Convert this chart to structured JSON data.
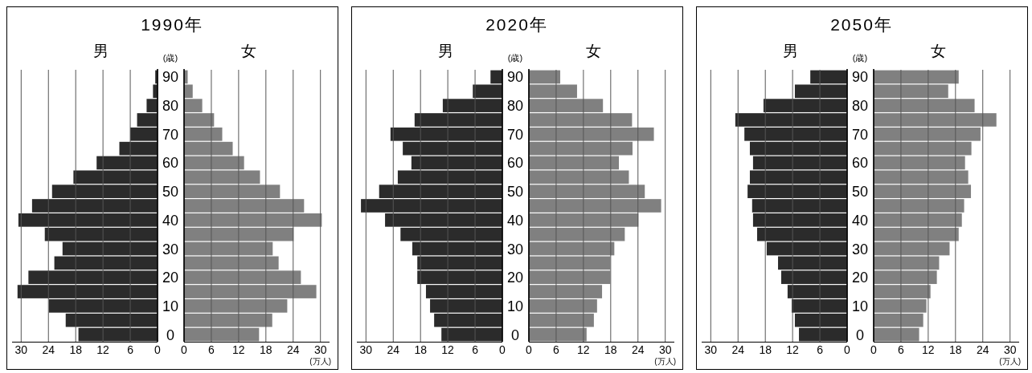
{
  "chart_data": [
    {
      "type": "bar",
      "orientation": "horizontal",
      "title": "1990年",
      "subtitle": "男",
      "ylabel": "(歳)",
      "categories": [
        "90",
        null,
        "80",
        null,
        "70",
        null,
        "60",
        null,
        "50",
        null,
        "40",
        null,
        "30",
        null,
        "20",
        null,
        "10",
        null,
        "0"
      ],
      "xlim": [
        32,
        0
      ],
      "xticks": [
        30,
        24,
        18,
        12,
        6,
        0
      ],
      "grid": "x",
      "series": [
        {
          "color": "#2b2b2b",
          "values": [
            0.5,
            1.0,
            2.4,
            4.5,
            6.0,
            8.4,
            13.4,
            18.5,
            23.2,
            27.6,
            30.6,
            24.8,
            20.9,
            22.7,
            28.4,
            30.8,
            23.9,
            20.2,
            17.4
          ]
        }
      ]
    },
    {
      "type": "bar",
      "orientation": "horizontal",
      "subtitle": "女",
      "xlabel": "(万人)",
      "tick_labels": "x",
      "categories": [
        "90",
        null,
        "80",
        null,
        "70",
        null,
        "60",
        null,
        "50",
        null,
        "40",
        null,
        "30",
        null,
        "20",
        null,
        "10",
        null,
        "0"
      ],
      "xlim": [
        0,
        32
      ],
      "xticks": [
        0,
        6,
        12,
        18,
        24,
        30
      ],
      "grid": "x",
      "series": [
        {
          "color": "#808080",
          "values": [
            0.8,
            1.9,
            4.0,
            6.6,
            8.4,
            10.7,
            13.2,
            16.7,
            21.1,
            26.4,
            30.3,
            24.1,
            19.5,
            20.8,
            25.7,
            29.1,
            22.7,
            19.4,
            16.5
          ]
        }
      ]
    },
    {
      "type": "bar",
      "orientation": "horizontal",
      "title": "2020年",
      "subtitle": "男",
      "ylabel": "(歳)",
      "categories": [
        "90",
        null,
        "80",
        null,
        "70",
        null,
        "60",
        null,
        "50",
        null,
        "40",
        null,
        "30",
        null,
        "20",
        null,
        "10",
        null,
        "0"
      ],
      "xlim": [
        32,
        0
      ],
      "xticks": [
        30,
        24,
        18,
        12,
        6,
        0
      ],
      "grid": "x",
      "series": [
        {
          "color": "#2b2b2b",
          "values": [
            2.6,
            6.5,
            13.1,
            19.3,
            24.6,
            21.9,
            20.0,
            23.0,
            27.1,
            31.1,
            25.8,
            22.4,
            19.8,
            18.7,
            18.7,
            16.8,
            15.9,
            15.0,
            13.4
          ]
        }
      ]
    },
    {
      "type": "bar",
      "orientation": "horizontal",
      "subtitle": "女",
      "xlabel": "(万人)",
      "tick_labels": "x",
      "categories": [
        "90",
        null,
        "80",
        null,
        "70",
        null,
        "60",
        null,
        "50",
        null,
        "40",
        null,
        "30",
        null,
        "20",
        null,
        "10",
        null,
        "0"
      ],
      "xlim": [
        0,
        32
      ],
      "xticks": [
        0,
        6,
        12,
        18,
        24,
        30
      ],
      "grid": "x",
      "series": [
        {
          "color": "#808080",
          "values": [
            6.9,
            10.6,
            16.3,
            22.7,
            27.5,
            22.8,
            19.8,
            22.0,
            25.5,
            29.1,
            24.1,
            21.1,
            18.8,
            17.9,
            17.9,
            16.1,
            15.0,
            14.3,
            12.7
          ]
        }
      ]
    },
    {
      "type": "bar",
      "orientation": "horizontal",
      "title": "2050年",
      "subtitle": "男",
      "ylabel": "(歳)",
      "categories": [
        "90",
        null,
        "80",
        null,
        "70",
        null,
        "60",
        null,
        "50",
        null,
        "40",
        null,
        "30",
        null,
        "20",
        null,
        "10",
        null,
        "0"
      ],
      "xlim": [
        32,
        0
      ],
      "xticks": [
        30,
        24,
        18,
        12,
        6,
        0
      ],
      "grid": "x",
      "series": [
        {
          "color": "#2b2b2b",
          "values": [
            8.1,
            11.5,
            18.4,
            24.6,
            22.6,
            21.4,
            20.7,
            21.4,
            21.9,
            20.9,
            20.7,
            19.8,
            17.7,
            15.2,
            14.5,
            13.1,
            12.2,
            11.5,
            10.6
          ]
        }
      ]
    },
    {
      "type": "bar",
      "orientation": "horizontal",
      "subtitle": "女",
      "xlabel": "(万人)",
      "tick_labels": "x",
      "categories": [
        "90",
        null,
        "80",
        null,
        "70",
        null,
        "60",
        null,
        "50",
        null,
        "40",
        null,
        "30",
        null,
        "20",
        null,
        "10",
        null,
        "0"
      ],
      "xlim": [
        0,
        32
      ],
      "xticks": [
        0,
        6,
        12,
        18,
        24,
        30
      ],
      "grid": "x",
      "series": [
        {
          "color": "#808080",
          "values": [
            18.7,
            16.4,
            22.2,
            27.0,
            23.5,
            21.5,
            20.1,
            20.8,
            21.4,
            19.9,
            19.4,
            18.7,
            16.7,
            14.4,
            13.9,
            12.5,
            11.6,
            10.9,
            10.0
          ]
        }
      ]
    }
  ]
}
